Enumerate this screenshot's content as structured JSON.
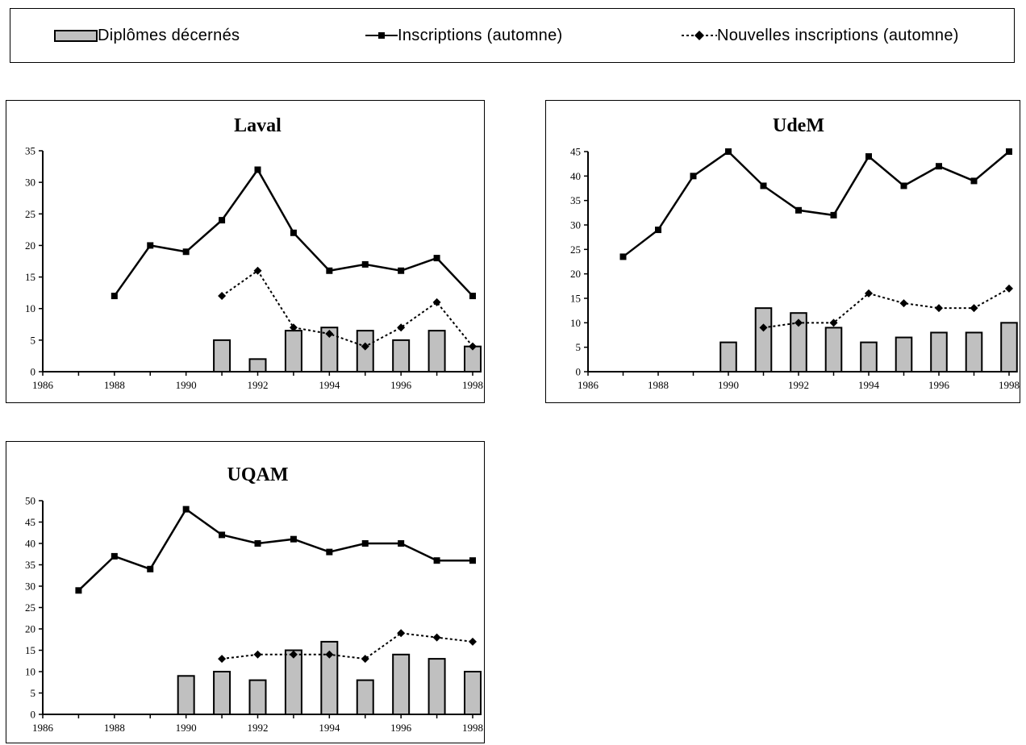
{
  "legend": {
    "bars": "Diplômes décernés",
    "enrolled": "Inscriptions (automne)",
    "new": "Nouvelles inscriptions (automne)"
  },
  "colors": {
    "bar_fill": "#c0c0c0",
    "line": "#000000"
  },
  "chart_data": [
    {
      "type": "bar",
      "title": "Laval",
      "xlabel": "",
      "ylabel": "",
      "x_ticks": [
        "1986",
        "1988",
        "1990",
        "1992",
        "1994",
        "1996",
        "1998"
      ],
      "y_ticks": [
        "0",
        "5",
        "10",
        "15",
        "20",
        "25",
        "30",
        "35"
      ],
      "xlim": [
        1986,
        1998
      ],
      "ylim": [
        0,
        35
      ],
      "grid": false,
      "series": [
        {
          "kind": "bar",
          "years": [
            1991,
            1992,
            1993,
            1994,
            1995,
            1996,
            1997,
            1998
          ],
          "values": [
            5,
            2,
            6.5,
            7,
            6.5,
            5,
            6.5,
            4
          ]
        },
        {
          "kind": "line",
          "style": "solid",
          "marker": "square",
          "years": [
            1988,
            1989,
            1990,
            1991,
            1992,
            1993,
            1994,
            1995,
            1996,
            1997,
            1998
          ],
          "values": [
            12,
            20,
            19,
            24,
            32,
            22,
            16,
            17,
            16,
            18,
            12
          ]
        },
        {
          "kind": "line",
          "style": "dotted",
          "marker": "diamond",
          "years": [
            1991,
            1992,
            1993,
            1994,
            1995,
            1996,
            1997,
            1998
          ],
          "values": [
            12,
            16,
            7,
            6,
            4,
            7,
            11,
            4
          ]
        }
      ]
    },
    {
      "type": "bar",
      "title": "UdeM",
      "xlabel": "",
      "ylabel": "",
      "x_ticks": [
        "1986",
        "1988",
        "1990",
        "1992",
        "1994",
        "1996",
        "1998"
      ],
      "y_ticks": [
        "0",
        "5",
        "10",
        "15",
        "20",
        "25",
        "30",
        "35",
        "40",
        "45"
      ],
      "xlim": [
        1986,
        1998
      ],
      "ylim": [
        0,
        45
      ],
      "grid": false,
      "series": [
        {
          "kind": "bar",
          "years": [
            1990,
            1991,
            1992,
            1993,
            1994,
            1995,
            1996,
            1997,
            1998
          ],
          "values": [
            6,
            13,
            12,
            9,
            6,
            7,
            8,
            8,
            10
          ]
        },
        {
          "kind": "line",
          "style": "solid",
          "marker": "square",
          "years": [
            1987,
            1988,
            1989,
            1990,
            1991,
            1992,
            1993,
            1994,
            1995,
            1996,
            1997,
            1998
          ],
          "values": [
            23.5,
            29,
            40,
            45,
            38,
            33,
            32,
            44,
            38,
            42,
            39,
            45
          ]
        },
        {
          "kind": "line",
          "style": "dotted",
          "marker": "diamond",
          "years": [
            1991,
            1992,
            1993,
            1994,
            1995,
            1996,
            1997,
            1998
          ],
          "values": [
            9,
            10,
            10,
            16,
            14,
            13,
            13,
            17
          ]
        }
      ]
    },
    {
      "type": "bar",
      "title": "UQAM",
      "xlabel": "",
      "ylabel": "",
      "x_ticks": [
        "1986",
        "1988",
        "1990",
        "1992",
        "1994",
        "1996",
        "1998"
      ],
      "y_ticks": [
        "0",
        "5",
        "10",
        "15",
        "20",
        "25",
        "30",
        "35",
        "40",
        "45",
        "50"
      ],
      "xlim": [
        1986,
        1998
      ],
      "ylim": [
        0,
        50
      ],
      "grid": false,
      "series": [
        {
          "kind": "bar",
          "years": [
            1990,
            1991,
            1992,
            1993,
            1994,
            1995,
            1996,
            1997,
            1998
          ],
          "values": [
            9,
            10,
            8,
            15,
            17,
            8,
            14,
            13,
            10
          ]
        },
        {
          "kind": "line",
          "style": "solid",
          "marker": "square",
          "years": [
            1987,
            1988,
            1989,
            1990,
            1991,
            1992,
            1993,
            1994,
            1995,
            1996,
            1997,
            1998
          ],
          "values": [
            29,
            37,
            34,
            48,
            42,
            40,
            41,
            38,
            40,
            40,
            36,
            36
          ]
        },
        {
          "kind": "line",
          "style": "dotted",
          "marker": "diamond",
          "years": [
            1991,
            1992,
            1993,
            1994,
            1995,
            1996,
            1997,
            1998
          ],
          "values": [
            13,
            14,
            14,
            14,
            13,
            19,
            18,
            17
          ]
        }
      ]
    }
  ]
}
